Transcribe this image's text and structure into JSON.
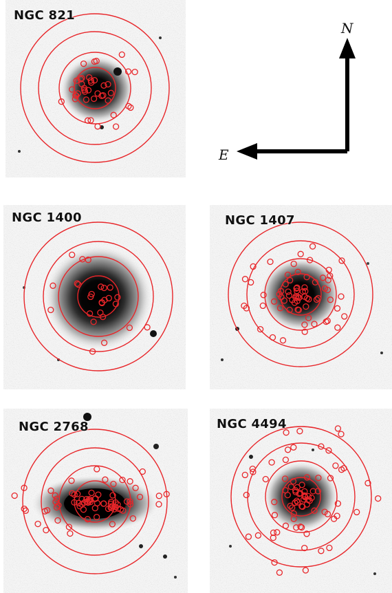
{
  "compass": {
    "north": "N",
    "east": "E"
  },
  "colors": {
    "overlay": "#e8262a",
    "galaxy": "#000000",
    "sky": "#ffffff"
  },
  "panels": [
    {
      "id": "ngc821",
      "label": "NGC 821"
    },
    {
      "id": "ngc1400",
      "label": "NGC 1400"
    },
    {
      "id": "ngc1407",
      "label": "NGC 1407"
    },
    {
      "id": "ngc2768",
      "label": "NGC 2768"
    },
    {
      "id": "ngc4494",
      "label": "NGC 4494"
    }
  ]
}
